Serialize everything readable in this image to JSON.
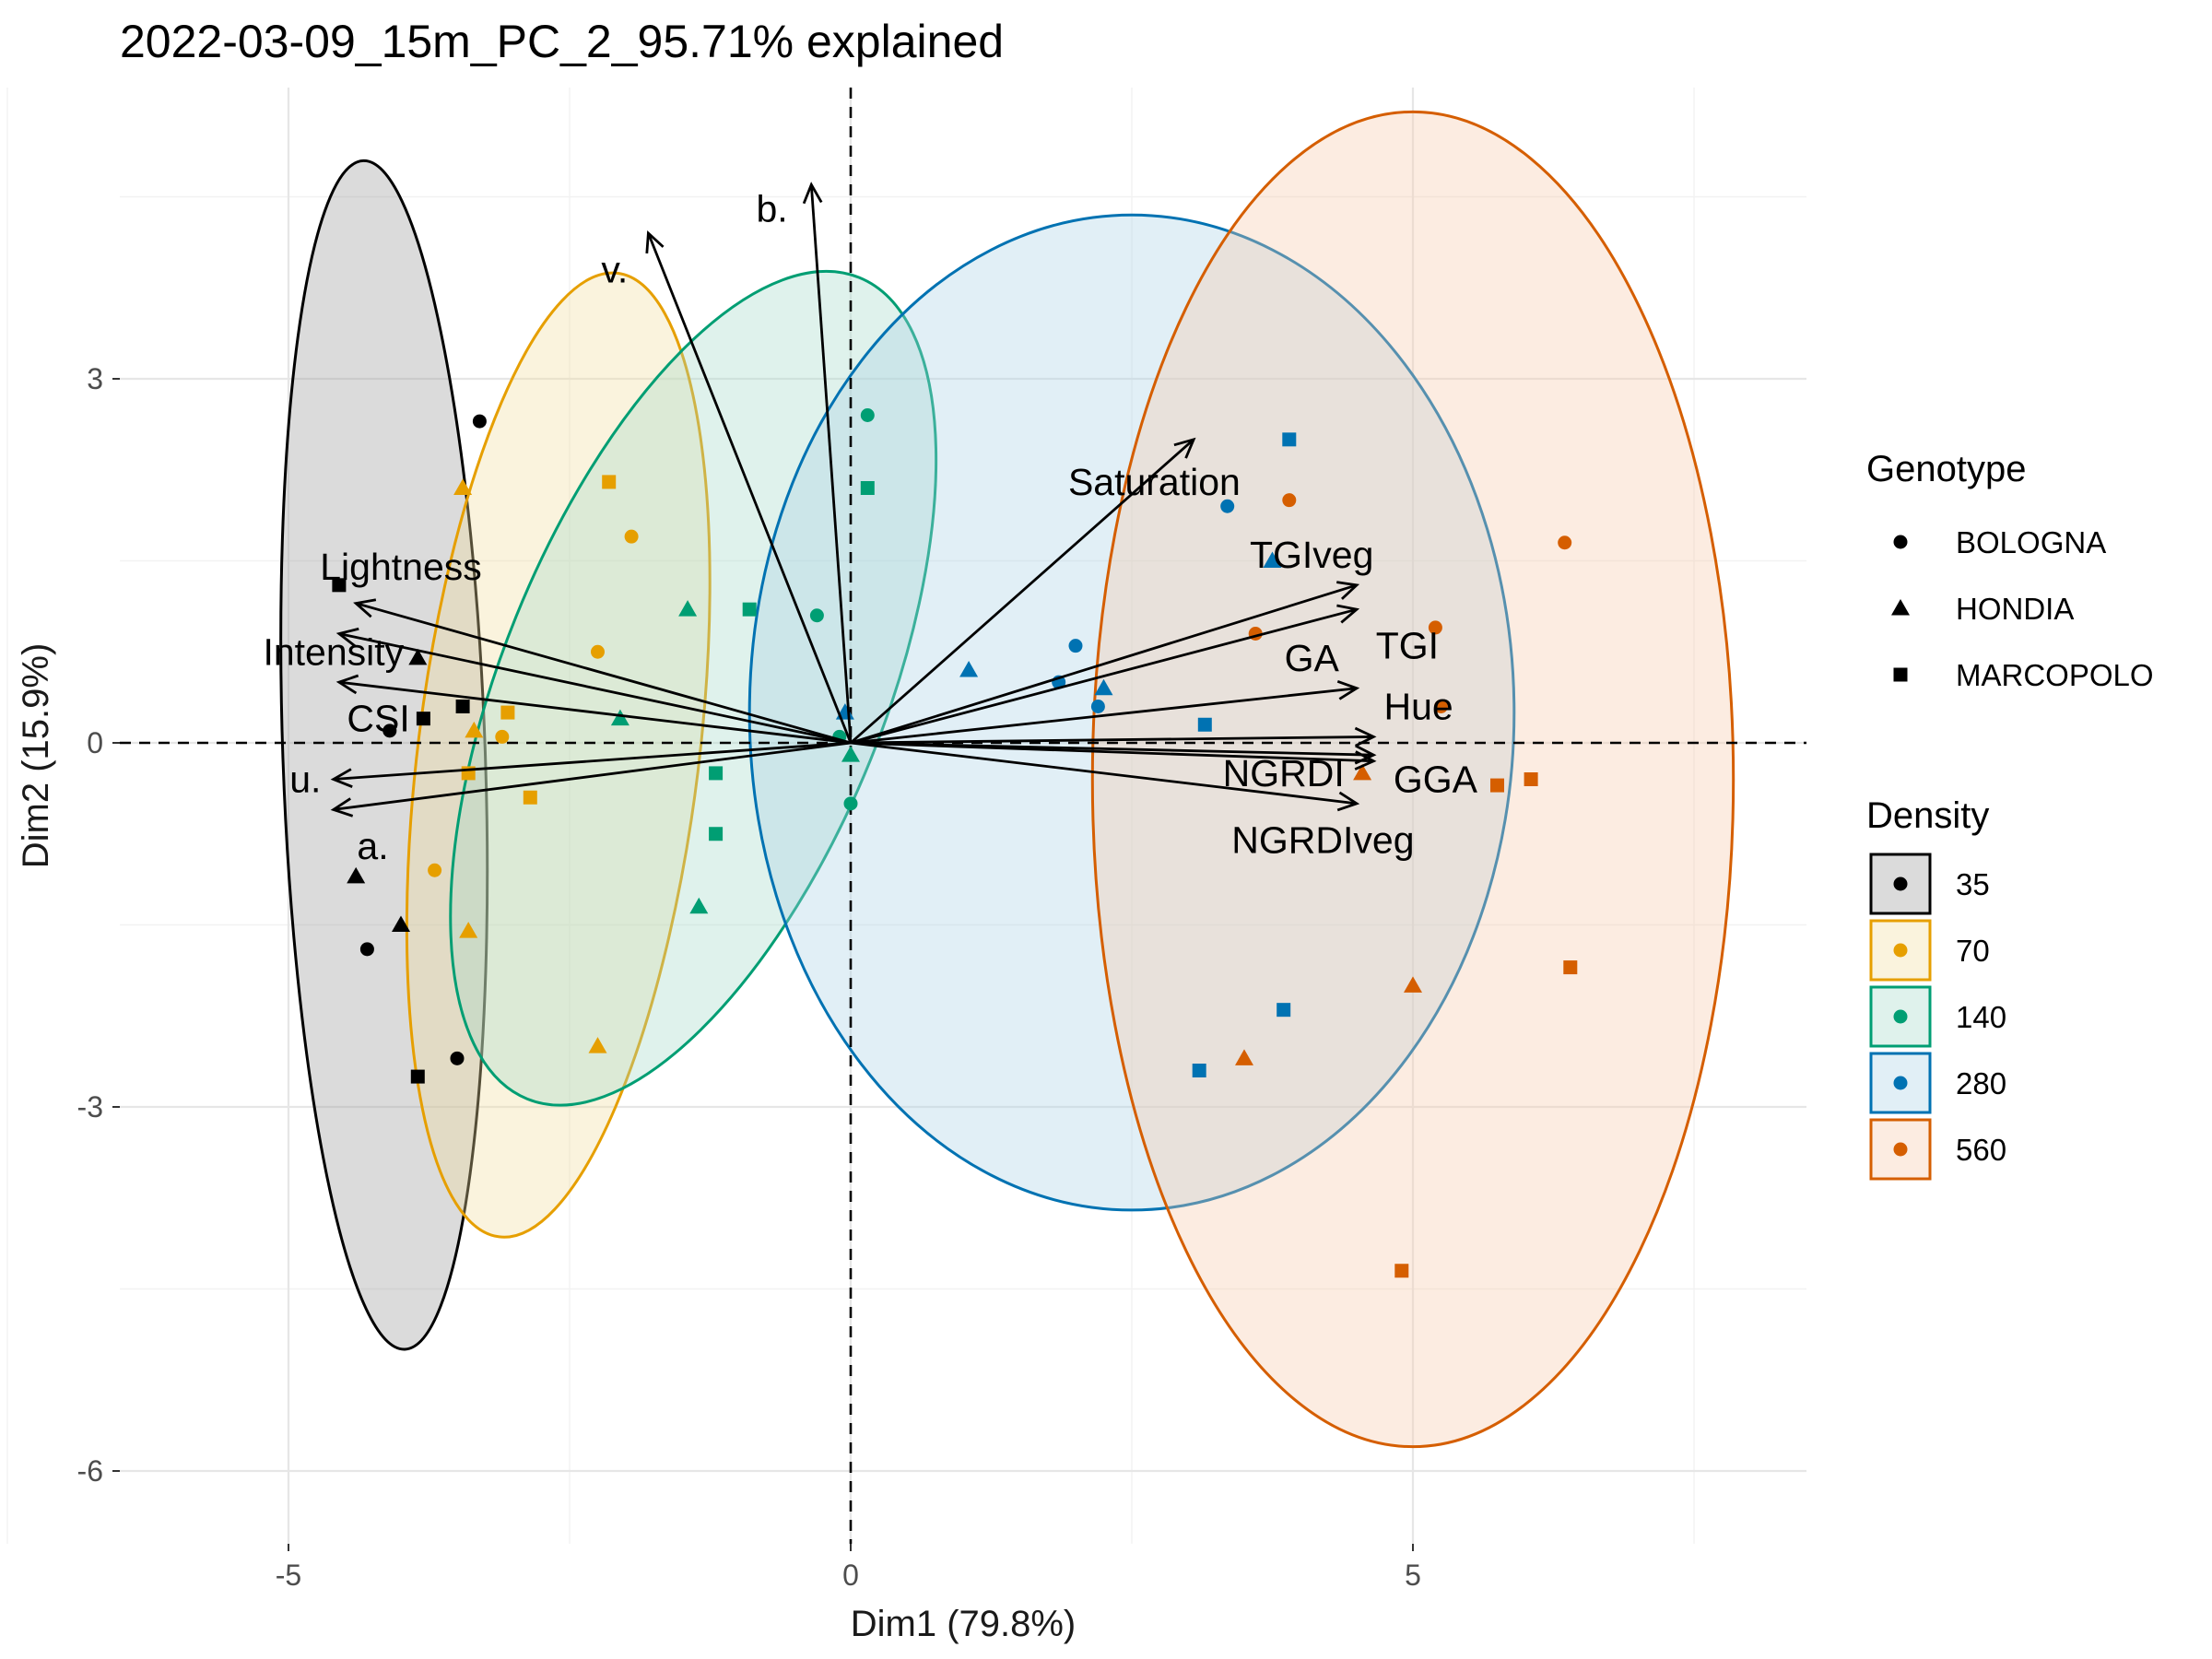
{
  "chart_data": {
    "type": "scatter",
    "title": "2022-03-09_15m_PC_2_95.71% explained",
    "xlabel": "Dim1 (79.8%)",
    "ylabel": "Dim2 (15.9%)",
    "xlim": [
      -6.5,
      8.5
    ],
    "ylim": [
      -6.6,
      5.4
    ],
    "x_ticks": [
      -5,
      0,
      5
    ],
    "x_tick_labels": [
      "-5",
      "0",
      "5"
    ],
    "y_ticks": [
      -6,
      -3,
      0,
      3
    ],
    "y_tick_labels": [
      "-6",
      "-3",
      "0",
      "3"
    ],
    "grid": true,
    "legend_placement": "right",
    "genotype_legend": {
      "title": "Genotype",
      "items": [
        {
          "label": "BOLOGNA",
          "shape": "circle"
        },
        {
          "label": "HONDIA",
          "shape": "triangle"
        },
        {
          "label": "MARCOPOLO",
          "shape": "square"
        }
      ]
    },
    "density_legend": {
      "title": "Density",
      "items": [
        {
          "label": "35",
          "color": "#000000"
        },
        {
          "label": "70",
          "color": "#E69F00"
        },
        {
          "label": "140",
          "color": "#009E73"
        },
        {
          "label": "280",
          "color": "#0072B2"
        },
        {
          "label": "560",
          "color": "#D55E00"
        }
      ]
    },
    "ellipses": [
      {
        "group": "35",
        "cx": -4.15,
        "cy": -0.1,
        "rx": 0.9,
        "ry": 4.9,
        "rotation": -2,
        "color": "#000000",
        "fill": "#999999"
      },
      {
        "group": "70",
        "cx": -2.6,
        "cy": -0.1,
        "rx": 1.25,
        "ry": 4.0,
        "rotation": 7,
        "color": "#E69F00",
        "fill": "#F2DE9E"
      },
      {
        "group": "140",
        "cx": -1.4,
        "cy": 0.45,
        "rx": 1.7,
        "ry": 3.65,
        "rotation": 22,
        "color": "#009E73",
        "fill": "#A3D9C9"
      },
      {
        "group": "280",
        "cx": 2.5,
        "cy": 0.25,
        "rx": 3.4,
        "ry": 4.1,
        "rotation": 0,
        "color": "#0072B2",
        "fill": "#A8D1E6"
      },
      {
        "group": "560",
        "cx": 5.0,
        "cy": -0.3,
        "rx": 2.85,
        "ry": 5.5,
        "rotation": 0,
        "color": "#D55E00",
        "fill": "#F5C9A8"
      }
    ],
    "points": [
      {
        "x": -3.3,
        "y": 2.65,
        "genotype": "BOLOGNA",
        "density": "35"
      },
      {
        "x": -4.1,
        "y": 0.1,
        "genotype": "BOLOGNA",
        "density": "35"
      },
      {
        "x": -4.3,
        "y": -1.7,
        "genotype": "BOLOGNA",
        "density": "35"
      },
      {
        "x": -3.5,
        "y": -2.6,
        "genotype": "BOLOGNA",
        "density": "35"
      },
      {
        "x": -3.85,
        "y": 0.7,
        "genotype": "HONDIA",
        "density": "35"
      },
      {
        "x": -4.4,
        "y": -1.1,
        "genotype": "HONDIA",
        "density": "35"
      },
      {
        "x": -4.0,
        "y": -1.5,
        "genotype": "HONDIA",
        "density": "35"
      },
      {
        "x": -4.55,
        "y": 1.3,
        "genotype": "MARCOPOLO",
        "density": "35"
      },
      {
        "x": -3.45,
        "y": 0.3,
        "genotype": "MARCOPOLO",
        "density": "35"
      },
      {
        "x": -3.8,
        "y": 0.2,
        "genotype": "MARCOPOLO",
        "density": "35"
      },
      {
        "x": -3.85,
        "y": -2.75,
        "genotype": "MARCOPOLO",
        "density": "35"
      },
      {
        "x": -1.95,
        "y": 1.7,
        "genotype": "BOLOGNA",
        "density": "70"
      },
      {
        "x": -2.25,
        "y": 0.75,
        "genotype": "BOLOGNA",
        "density": "70"
      },
      {
        "x": -3.1,
        "y": 0.05,
        "genotype": "BOLOGNA",
        "density": "70"
      },
      {
        "x": -3.7,
        "y": -1.05,
        "genotype": "BOLOGNA",
        "density": "70"
      },
      {
        "x": -3.45,
        "y": 2.1,
        "genotype": "HONDIA",
        "density": "70"
      },
      {
        "x": -3.35,
        "y": 0.1,
        "genotype": "HONDIA",
        "density": "70"
      },
      {
        "x": -3.4,
        "y": -1.55,
        "genotype": "HONDIA",
        "density": "70"
      },
      {
        "x": -2.25,
        "y": -2.5,
        "genotype": "HONDIA",
        "density": "70"
      },
      {
        "x": -2.15,
        "y": 2.15,
        "genotype": "MARCOPOLO",
        "density": "70"
      },
      {
        "x": -3.05,
        "y": 0.25,
        "genotype": "MARCOPOLO",
        "density": "70"
      },
      {
        "x": -3.4,
        "y": -0.25,
        "genotype": "MARCOPOLO",
        "density": "70"
      },
      {
        "x": -2.85,
        "y": -0.45,
        "genotype": "MARCOPOLO",
        "density": "70"
      },
      {
        "x": 0.15,
        "y": 2.7,
        "genotype": "BOLOGNA",
        "density": "140"
      },
      {
        "x": -0.3,
        "y": 1.05,
        "genotype": "BOLOGNA",
        "density": "140"
      },
      {
        "x": -0.1,
        "y": 0.05,
        "genotype": "BOLOGNA",
        "density": "140"
      },
      {
        "x": 0.0,
        "y": -0.5,
        "genotype": "BOLOGNA",
        "density": "140"
      },
      {
        "x": -1.45,
        "y": 1.1,
        "genotype": "HONDIA",
        "density": "140"
      },
      {
        "x": -2.05,
        "y": 0.2,
        "genotype": "HONDIA",
        "density": "140"
      },
      {
        "x": 0.0,
        "y": -0.1,
        "genotype": "HONDIA",
        "density": "140"
      },
      {
        "x": -1.35,
        "y": -1.35,
        "genotype": "HONDIA",
        "density": "140"
      },
      {
        "x": 0.15,
        "y": 2.1,
        "genotype": "MARCOPOLO",
        "density": "140"
      },
      {
        "x": -0.9,
        "y": 1.1,
        "genotype": "MARCOPOLO",
        "density": "140"
      },
      {
        "x": -1.2,
        "y": -0.25,
        "genotype": "MARCOPOLO",
        "density": "140"
      },
      {
        "x": -1.2,
        "y": -0.75,
        "genotype": "MARCOPOLO",
        "density": "140"
      },
      {
        "x": 3.35,
        "y": 1.95,
        "genotype": "BOLOGNA",
        "density": "280"
      },
      {
        "x": 2.0,
        "y": 0.8,
        "genotype": "BOLOGNA",
        "density": "280"
      },
      {
        "x": 1.85,
        "y": 0.5,
        "genotype": "BOLOGNA",
        "density": "280"
      },
      {
        "x": 2.2,
        "y": 0.3,
        "genotype": "BOLOGNA",
        "density": "280"
      },
      {
        "x": 3.75,
        "y": 1.5,
        "genotype": "HONDIA",
        "density": "280"
      },
      {
        "x": 1.05,
        "y": 0.6,
        "genotype": "HONDIA",
        "density": "280"
      },
      {
        "x": 2.25,
        "y": 0.45,
        "genotype": "HONDIA",
        "density": "280"
      },
      {
        "x": -0.05,
        "y": 0.25,
        "genotype": "HONDIA",
        "density": "280"
      },
      {
        "x": 3.9,
        "y": 2.5,
        "genotype": "MARCOPOLO",
        "density": "280"
      },
      {
        "x": 3.15,
        "y": 0.15,
        "genotype": "MARCOPOLO",
        "density": "280"
      },
      {
        "x": 3.85,
        "y": -2.2,
        "genotype": "MARCOPOLO",
        "density": "280"
      },
      {
        "x": 3.1,
        "y": -2.7,
        "genotype": "MARCOPOLO",
        "density": "280"
      },
      {
        "x": 3.9,
        "y": 2.0,
        "genotype": "BOLOGNA",
        "density": "560"
      },
      {
        "x": 6.35,
        "y": 1.65,
        "genotype": "BOLOGNA",
        "density": "560"
      },
      {
        "x": 5.2,
        "y": 0.95,
        "genotype": "BOLOGNA",
        "density": "560"
      },
      {
        "x": 3.6,
        "y": 0.9,
        "genotype": "BOLOGNA",
        "density": "560"
      },
      {
        "x": 5.25,
        "y": 0.3,
        "genotype": "BOLOGNA",
        "density": "560"
      },
      {
        "x": 4.55,
        "y": -0.25,
        "genotype": "HONDIA",
        "density": "560"
      },
      {
        "x": 5.0,
        "y": -2.0,
        "genotype": "HONDIA",
        "density": "560"
      },
      {
        "x": 3.5,
        "y": -2.6,
        "genotype": "HONDIA",
        "density": "560"
      },
      {
        "x": 5.75,
        "y": -0.35,
        "genotype": "MARCOPOLO",
        "density": "560"
      },
      {
        "x": 6.05,
        "y": -0.3,
        "genotype": "MARCOPOLO",
        "density": "560"
      },
      {
        "x": 6.4,
        "y": -1.85,
        "genotype": "MARCOPOLO",
        "density": "560"
      },
      {
        "x": 4.9,
        "y": -4.35,
        "genotype": "MARCOPOLO",
        "density": "560"
      }
    ],
    "variables": [
      {
        "name": "b.",
        "x": -0.35,
        "y": 4.6,
        "label_x": -0.7,
        "label_y": 4.4
      },
      {
        "name": "v.",
        "x": -1.8,
        "y": 4.2,
        "label_x": -2.1,
        "label_y": 3.9
      },
      {
        "name": "Saturation",
        "x": 3.05,
        "y": 2.5,
        "label_x": 2.7,
        "label_y": 2.15
      },
      {
        "name": "TGIveg",
        "x": 4.5,
        "y": 1.3,
        "label_x": 4.1,
        "label_y": 1.55
      },
      {
        "name": "TGI",
        "x": 4.5,
        "y": 1.1,
        "label_x": 4.95,
        "label_y": 0.8
      },
      {
        "name": "GA",
        "x": 4.5,
        "y": 0.45,
        "label_x": 4.1,
        "label_y": 0.7
      },
      {
        "name": "Hue",
        "x": 4.65,
        "y": 0.05,
        "label_x": 5.05,
        "label_y": 0.3
      },
      {
        "name": "NGRDI",
        "x": 4.65,
        "y": -0.1,
        "label_x": 3.85,
        "label_y": -0.25
      },
      {
        "name": "GGA",
        "x": 4.65,
        "y": -0.15,
        "label_x": 5.2,
        "label_y": -0.3
      },
      {
        "name": "NGRDIveg",
        "x": 4.5,
        "y": -0.5,
        "label_x": 4.2,
        "label_y": -0.8
      },
      {
        "name": "Lightness",
        "x": -4.4,
        "y": 1.15,
        "label_x": -4.0,
        "label_y": 1.45
      },
      {
        "name": "Intensity",
        "x": -4.55,
        "y": 0.9,
        "label_x": -4.6,
        "label_y": 0.75
      },
      {
        "name": "CSI",
        "x": -4.55,
        "y": 0.5,
        "label_x": -4.2,
        "label_y": 0.2
      },
      {
        "name": "u.",
        "x": -4.6,
        "y": -0.3,
        "label_x": -4.85,
        "label_y": -0.3
      },
      {
        "name": "a.",
        "x": -4.6,
        "y": -0.55,
        "label_x": -4.25,
        "label_y": -0.85
      }
    ]
  }
}
